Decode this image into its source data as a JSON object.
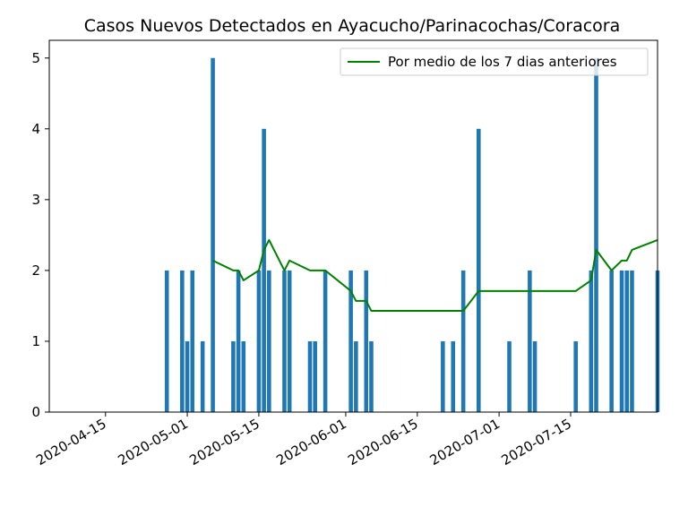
{
  "chart_data": {
    "type": "bar",
    "title": "Casos Nuevos Detectados en Ayacucho/Parinacochas/Coracora",
    "xlabel": "",
    "ylabel": "",
    "x_range": [
      "2020-04-04",
      "2020-08-01"
    ],
    "ylim": [
      0,
      5.25
    ],
    "y_ticks": [
      "0",
      "1",
      "2",
      "3",
      "4",
      "5"
    ],
    "x_ticks": [
      {
        "date": "2020-04-15",
        "label": "2020-04-15"
      },
      {
        "date": "2020-05-01",
        "label": "2020-05-01"
      },
      {
        "date": "2020-05-15",
        "label": "2020-05-15"
      },
      {
        "date": "2020-06-01",
        "label": "2020-06-01"
      },
      {
        "date": "2020-06-15",
        "label": "2020-06-15"
      },
      {
        "date": "2020-07-01",
        "label": "2020-07-01"
      },
      {
        "date": "2020-07-15",
        "label": "2020-07-15"
      }
    ],
    "bar_color": "#1f77b4",
    "line_color": "#008000",
    "grid": false,
    "legend_position": "top-right",
    "bars": [
      {
        "date": "2020-04-27",
        "value": 2
      },
      {
        "date": "2020-04-30",
        "value": 2
      },
      {
        "date": "2020-05-01",
        "value": 1
      },
      {
        "date": "2020-05-02",
        "value": 2
      },
      {
        "date": "2020-05-04",
        "value": 1
      },
      {
        "date": "2020-05-06",
        "value": 5
      },
      {
        "date": "2020-05-10",
        "value": 1
      },
      {
        "date": "2020-05-11",
        "value": 2
      },
      {
        "date": "2020-05-12",
        "value": 1
      },
      {
        "date": "2020-05-15",
        "value": 2
      },
      {
        "date": "2020-05-16",
        "value": 4
      },
      {
        "date": "2020-05-17",
        "value": 2
      },
      {
        "date": "2020-05-20",
        "value": 2
      },
      {
        "date": "2020-05-21",
        "value": 2
      },
      {
        "date": "2020-05-25",
        "value": 1
      },
      {
        "date": "2020-05-26",
        "value": 1
      },
      {
        "date": "2020-05-28",
        "value": 2
      },
      {
        "date": "2020-06-02",
        "value": 2
      },
      {
        "date": "2020-06-03",
        "value": 1
      },
      {
        "date": "2020-06-05",
        "value": 2
      },
      {
        "date": "2020-06-06",
        "value": 1
      },
      {
        "date": "2020-06-20",
        "value": 1
      },
      {
        "date": "2020-06-22",
        "value": 1
      },
      {
        "date": "2020-06-24",
        "value": 2
      },
      {
        "date": "2020-06-27",
        "value": 4
      },
      {
        "date": "2020-07-03",
        "value": 1
      },
      {
        "date": "2020-07-07",
        "value": 2
      },
      {
        "date": "2020-07-08",
        "value": 1
      },
      {
        "date": "2020-07-16",
        "value": 1
      },
      {
        "date": "2020-07-19",
        "value": 2
      },
      {
        "date": "2020-07-20",
        "value": 5
      },
      {
        "date": "2020-07-23",
        "value": 2
      },
      {
        "date": "2020-07-25",
        "value": 2
      },
      {
        "date": "2020-07-26",
        "value": 2
      },
      {
        "date": "2020-07-27",
        "value": 2
      },
      {
        "date": "2020-08-01",
        "value": 2
      }
    ],
    "series": [
      {
        "name": "Por medio de los 7 dias anteriores",
        "points": [
          {
            "date": "2020-05-06",
            "value": 2.14
          },
          {
            "date": "2020-05-10",
            "value": 2.0
          },
          {
            "date": "2020-05-11",
            "value": 2.0
          },
          {
            "date": "2020-05-12",
            "value": 1.86
          },
          {
            "date": "2020-05-15",
            "value": 2.0
          },
          {
            "date": "2020-05-16",
            "value": 2.29
          },
          {
            "date": "2020-05-17",
            "value": 2.43
          },
          {
            "date": "2020-05-20",
            "value": 2.0
          },
          {
            "date": "2020-05-21",
            "value": 2.14
          },
          {
            "date": "2020-05-25",
            "value": 2.0
          },
          {
            "date": "2020-05-26",
            "value": 2.0
          },
          {
            "date": "2020-05-28",
            "value": 2.0
          },
          {
            "date": "2020-06-02",
            "value": 1.71
          },
          {
            "date": "2020-06-03",
            "value": 1.57
          },
          {
            "date": "2020-06-05",
            "value": 1.57
          },
          {
            "date": "2020-06-06",
            "value": 1.43
          },
          {
            "date": "2020-06-20",
            "value": 1.43
          },
          {
            "date": "2020-06-22",
            "value": 1.43
          },
          {
            "date": "2020-06-24",
            "value": 1.43
          },
          {
            "date": "2020-06-27",
            "value": 1.71
          },
          {
            "date": "2020-07-03",
            "value": 1.71
          },
          {
            "date": "2020-07-07",
            "value": 1.71
          },
          {
            "date": "2020-07-08",
            "value": 1.71
          },
          {
            "date": "2020-07-16",
            "value": 1.71
          },
          {
            "date": "2020-07-19",
            "value": 1.86
          },
          {
            "date": "2020-07-20",
            "value": 2.29
          },
          {
            "date": "2020-07-23",
            "value": 2.0
          },
          {
            "date": "2020-07-25",
            "value": 2.14
          },
          {
            "date": "2020-07-26",
            "value": 2.14
          },
          {
            "date": "2020-07-27",
            "value": 2.29
          },
          {
            "date": "2020-08-01",
            "value": 2.43
          }
        ]
      }
    ]
  }
}
